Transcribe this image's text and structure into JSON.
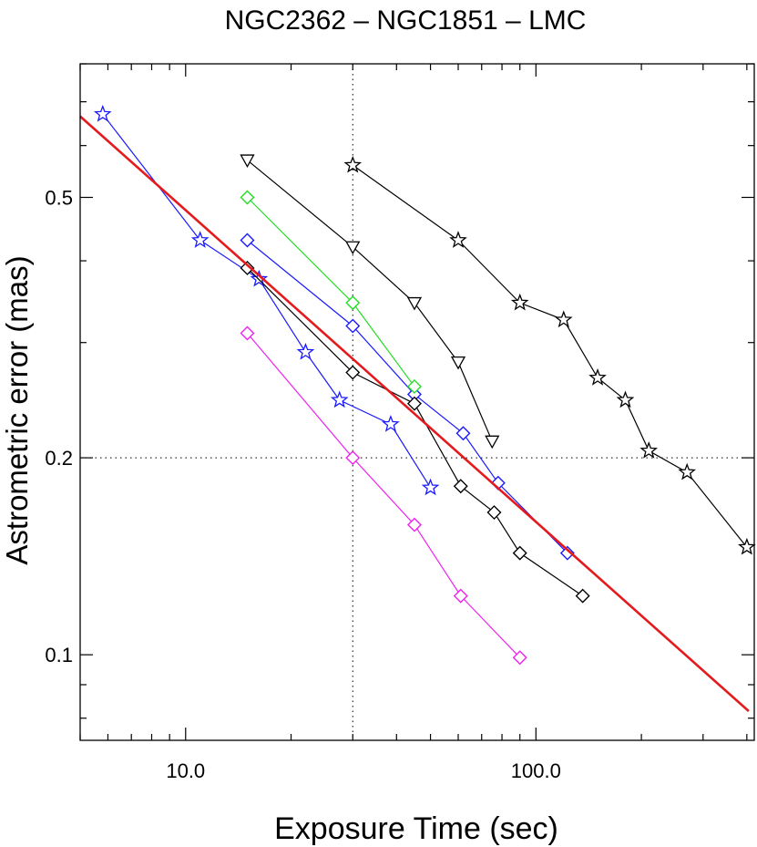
{
  "chart_data": {
    "type": "scatter",
    "title": "NGC2362 – NGC1851 – LMC",
    "xlabel": "Exposure Time (sec)",
    "ylabel": "Astrometric error (mas)",
    "x_scale": "log",
    "y_scale": "log",
    "xlim": [
      5.0,
      420.0
    ],
    "ylim": [
      0.074,
      0.8
    ],
    "xticks": [
      {
        "value": 10,
        "label": "10.0"
      },
      {
        "value": 100,
        "label": "100.0"
      }
    ],
    "yticks": [
      {
        "value": 0.1,
        "label": "0.1"
      },
      {
        "value": 0.2,
        "label": "0.2"
      },
      {
        "value": 0.5,
        "label": "0.5"
      }
    ],
    "reference_lines": [
      {
        "orientation": "vertical",
        "x": 30,
        "style": "dotted"
      },
      {
        "orientation": "horizontal",
        "y": 0.2,
        "style": "dotted"
      }
    ],
    "fit_line": {
      "color": "#e41a1c",
      "x": [
        5.0,
        405.0
      ],
      "y": [
        0.665,
        0.082
      ]
    },
    "series": [
      {
        "marker": "star",
        "color": "#1a1aff",
        "x": [
          5.8,
          11.0,
          16.2,
          22.0,
          27.5,
          38.5,
          50.0
        ],
        "y": [
          0.67,
          0.43,
          0.375,
          0.29,
          0.245,
          0.225,
          0.18
        ]
      },
      {
        "marker": "diamond",
        "color": "#1a1aff",
        "x": [
          15.0,
          30.0,
          45.0,
          62.0,
          78.0,
          123.0
        ],
        "y": [
          0.43,
          0.318,
          0.25,
          0.218,
          0.183,
          0.143
        ]
      },
      {
        "marker": "diamond",
        "color": "#000000",
        "x": [
          15.0,
          30.0,
          45.0,
          61.0,
          76.0,
          90.0,
          136.0
        ],
        "y": [
          0.39,
          0.27,
          0.242,
          0.181,
          0.165,
          0.143,
          0.123
        ]
      },
      {
        "marker": "diamond",
        "color": "#22dd22",
        "x": [
          15.0,
          30.0,
          45.0
        ],
        "y": [
          0.5,
          0.345,
          0.257
        ]
      },
      {
        "marker": "diamond",
        "color": "#ee22ee",
        "x": [
          15.0,
          30.0,
          45.0,
          61.0,
          90.0
        ],
        "y": [
          0.31,
          0.2,
          0.158,
          0.123,
          0.099
        ]
      },
      {
        "marker": "triangle-down",
        "color": "#000000",
        "x": [
          15.0,
          30.0,
          45.0,
          60.0,
          75.0
        ],
        "y": [
          0.57,
          0.42,
          0.345,
          0.28,
          0.212
        ]
      },
      {
        "marker": "star",
        "color": "#000000",
        "x": [
          30.0,
          60.0,
          90.0,
          120.0,
          150.0,
          180.0,
          210.0,
          270.0,
          400.0
        ],
        "y": [
          0.56,
          0.43,
          0.345,
          0.325,
          0.265,
          0.245,
          0.205,
          0.19,
          0.146
        ]
      }
    ]
  }
}
